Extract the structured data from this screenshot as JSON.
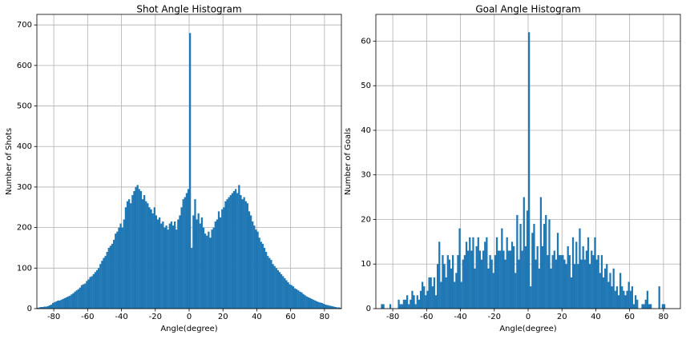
{
  "chart_data": [
    {
      "type": "histogram",
      "title": "Shot Angle Histogram",
      "x_label": "Angle(degree)",
      "y_label": "Number of Shots",
      "color": "#1f77b4",
      "grid": true,
      "xlim": [
        -90,
        90
      ],
      "ylim": [
        0,
        726
      ],
      "xticks": [
        -80,
        -60,
        -40,
        -20,
        0,
        20,
        40,
        60,
        80
      ],
      "yticks": [
        0,
        100,
        200,
        300,
        400,
        500,
        600,
        700
      ],
      "bins": [
        -90,
        -89,
        -88,
        -87,
        -86,
        -85,
        -84,
        -83,
        -82,
        -81,
        -80,
        -79,
        -78,
        -77,
        -76,
        -75,
        -74,
        -73,
        -72,
        -71,
        -70,
        -69,
        -68,
        -67,
        -66,
        -65,
        -64,
        -63,
        -62,
        -61,
        -60,
        -59,
        -58,
        -57,
        -56,
        -55,
        -54,
        -53,
        -52,
        -51,
        -50,
        -49,
        -48,
        -47,
        -46,
        -45,
        -44,
        -43,
        -42,
        -41,
        -40,
        -39,
        -38,
        -37,
        -36,
        -35,
        -34,
        -33,
        -32,
        -31,
        -30,
        -29,
        -28,
        -27,
        -26,
        -25,
        -24,
        -23,
        -22,
        -21,
        -20,
        -19,
        -18,
        -17,
        -16,
        -15,
        -14,
        -13,
        -12,
        -11,
        -10,
        -9,
        -8,
        -7,
        -6,
        -5,
        -4,
        -3,
        -2,
        -1,
        0,
        1,
        2,
        3,
        4,
        5,
        6,
        7,
        8,
        9,
        10,
        11,
        12,
        13,
        14,
        15,
        16,
        17,
        18,
        19,
        20,
        21,
        22,
        23,
        24,
        25,
        26,
        27,
        28,
        29,
        30,
        31,
        32,
        33,
        34,
        35,
        36,
        37,
        38,
        39,
        40,
        41,
        42,
        43,
        44,
        45,
        46,
        47,
        48,
        49,
        50,
        51,
        52,
        53,
        54,
        55,
        56,
        57,
        58,
        59,
        60,
        61,
        62,
        63,
        64,
        65,
        66,
        67,
        68,
        69,
        70,
        71,
        72,
        73,
        74,
        75,
        76,
        77,
        78,
        79,
        80,
        81,
        82,
        83,
        84,
        85,
        86,
        87,
        88,
        89,
        90
      ],
      "values": [
        2,
        3,
        4,
        4,
        5,
        5,
        6,
        8,
        10,
        14,
        16,
        18,
        20,
        20,
        22,
        24,
        26,
        28,
        30,
        32,
        35,
        38,
        42,
        45,
        48,
        52,
        58,
        60,
        62,
        68,
        72,
        78,
        80,
        85,
        90,
        95,
        100,
        110,
        118,
        125,
        130,
        140,
        150,
        155,
        160,
        170,
        185,
        190,
        200,
        210,
        200,
        220,
        250,
        265,
        270,
        260,
        280,
        290,
        300,
        305,
        295,
        290,
        270,
        280,
        265,
        260,
        250,
        245,
        235,
        250,
        230,
        220,
        225,
        210,
        215,
        200,
        205,
        195,
        210,
        215,
        205,
        215,
        195,
        220,
        230,
        250,
        270,
        275,
        285,
        295,
        680,
        150,
        230,
        270,
        220,
        235,
        210,
        225,
        200,
        185,
        180,
        190,
        175,
        195,
        200,
        215,
        220,
        240,
        225,
        245,
        250,
        265,
        270,
        275,
        280,
        285,
        290,
        295,
        285,
        305,
        280,
        270,
        275,
        265,
        260,
        240,
        230,
        215,
        205,
        195,
        190,
        175,
        165,
        160,
        150,
        140,
        130,
        125,
        120,
        110,
        105,
        100,
        95,
        90,
        85,
        80,
        75,
        70,
        65,
        60,
        58,
        55,
        50,
        48,
        45,
        42,
        40,
        36,
        33,
        30,
        28,
        26,
        24,
        22,
        20,
        18,
        16,
        15,
        14,
        12,
        10,
        9,
        8,
        7,
        6,
        5,
        4,
        3,
        3,
        2
      ]
    },
    {
      "type": "histogram",
      "title": "Goal Angle Histogram",
      "x_label": "Angle(degree)",
      "y_label": "Number of Goals",
      "color": "#1f77b4",
      "grid": true,
      "xlim": [
        -90,
        90
      ],
      "ylim": [
        0,
        66
      ],
      "xticks": [
        -80,
        -60,
        -40,
        -20,
        0,
        20,
        40,
        60,
        80
      ],
      "yticks": [
        0,
        10,
        20,
        30,
        40,
        50,
        60
      ],
      "bins": [
        -90,
        -89,
        -88,
        -87,
        -86,
        -85,
        -84,
        -83,
        -82,
        -81,
        -80,
        -79,
        -78,
        -77,
        -76,
        -75,
        -74,
        -73,
        -72,
        -71,
        -70,
        -69,
        -68,
        -67,
        -66,
        -65,
        -64,
        -63,
        -62,
        -61,
        -60,
        -59,
        -58,
        -57,
        -56,
        -55,
        -54,
        -53,
        -52,
        -51,
        -50,
        -49,
        -48,
        -47,
        -46,
        -45,
        -44,
        -43,
        -42,
        -41,
        -40,
        -39,
        -38,
        -37,
        -36,
        -35,
        -34,
        -33,
        -32,
        -31,
        -30,
        -29,
        -28,
        -27,
        -26,
        -25,
        -24,
        -23,
        -22,
        -21,
        -20,
        -19,
        -18,
        -17,
        -16,
        -15,
        -14,
        -13,
        -12,
        -11,
        -10,
        -9,
        -8,
        -7,
        -6,
        -5,
        -4,
        -3,
        -2,
        -1,
        0,
        1,
        2,
        3,
        4,
        5,
        6,
        7,
        8,
        9,
        10,
        11,
        12,
        13,
        14,
        15,
        16,
        17,
        18,
        19,
        20,
        21,
        22,
        23,
        24,
        25,
        26,
        27,
        28,
        29,
        30,
        31,
        32,
        33,
        34,
        35,
        36,
        37,
        38,
        39,
        40,
        41,
        42,
        43,
        44,
        45,
        46,
        47,
        48,
        49,
        50,
        51,
        52,
        53,
        54,
        55,
        56,
        57,
        58,
        59,
        60,
        61,
        62,
        63,
        64,
        65,
        66,
        67,
        68,
        69,
        70,
        71,
        72,
        73,
        74,
        75,
        76,
        77,
        78,
        79,
        80,
        81,
        82,
        83,
        84,
        85,
        86,
        87,
        88,
        89,
        90
      ],
      "values": [
        0,
        0,
        0,
        1,
        1,
        0,
        0,
        0,
        1,
        0,
        0,
        0,
        0,
        2,
        1,
        1,
        2,
        2,
        3,
        1,
        2,
        4,
        3,
        1,
        3,
        2,
        4,
        6,
        5,
        3,
        4,
        7,
        7,
        5,
        7,
        3,
        10,
        15,
        6,
        12,
        10,
        7,
        12,
        11,
        9,
        12,
        6,
        8,
        12,
        18,
        6,
        11,
        12,
        15,
        13,
        16,
        13,
        16,
        9,
        14,
        16,
        13,
        11,
        13,
        15,
        16,
        9,
        12,
        11,
        8,
        12,
        16,
        13,
        13,
        18,
        13,
        11,
        16,
        13,
        13,
        15,
        14,
        8,
        21,
        11,
        19,
        13,
        25,
        14,
        22,
        62,
        5,
        17,
        19,
        11,
        14,
        9,
        25,
        14,
        19,
        21,
        12,
        20,
        9,
        12,
        13,
        11,
        17,
        12,
        12,
        12,
        11,
        10,
        14,
        12,
        7,
        16,
        10,
        15,
        10,
        18,
        11,
        14,
        11,
        13,
        16,
        10,
        13,
        12,
        16,
        11,
        12,
        8,
        12,
        7,
        9,
        10,
        6,
        8,
        5,
        9,
        4,
        5,
        3,
        8,
        5,
        4,
        3,
        4,
        6,
        4,
        5,
        1,
        3,
        2,
        0,
        0,
        1,
        1,
        2,
        4,
        1,
        1,
        0,
        0,
        0,
        0,
        5,
        0,
        1,
        1,
        0,
        0,
        0,
        0,
        0,
        0,
        0,
        0,
        0
      ]
    }
  ]
}
